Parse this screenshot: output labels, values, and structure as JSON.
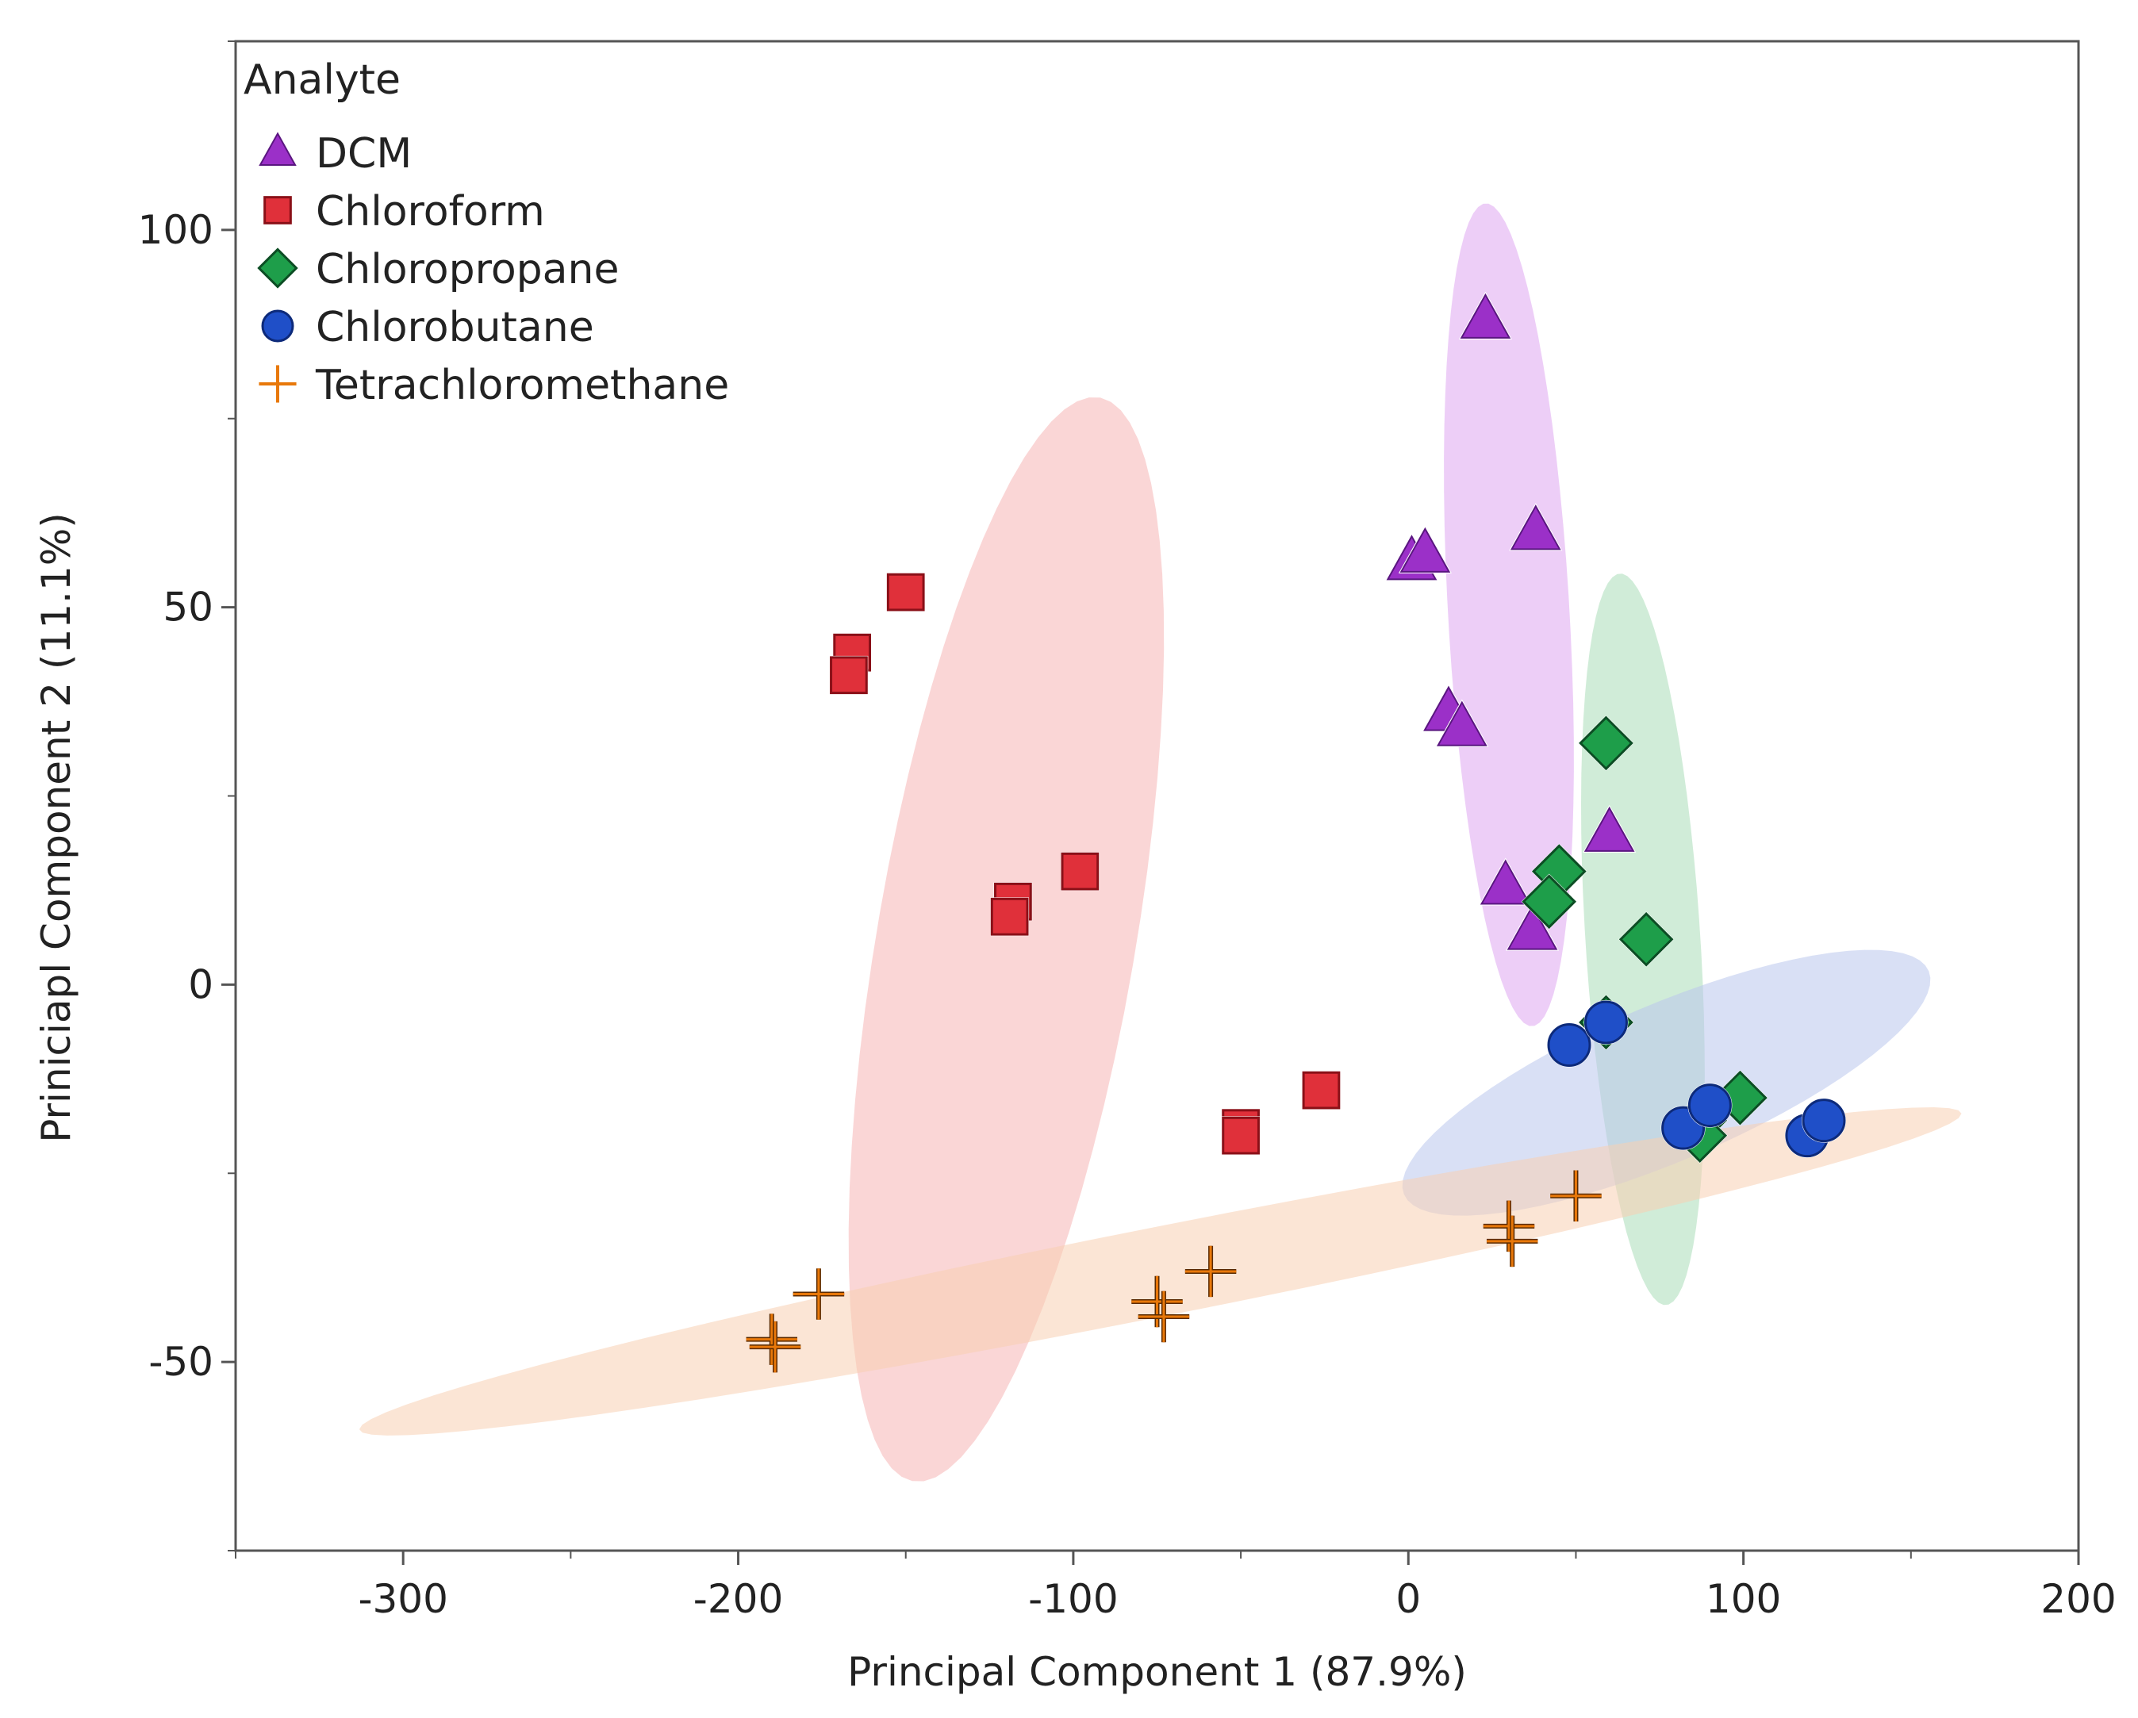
{
  "chart_data": {
    "type": "scatter",
    "title": "",
    "xlabel": "Principal Component 1 (87.9%)",
    "ylabel": "Priniciapl Component 2 (11.1%)",
    "xlim": [
      -350,
      200
    ],
    "ylim": [
      -75,
      125
    ],
    "xticks": [
      -300,
      -200,
      -100,
      0,
      100,
      200
    ],
    "yticks": [
      100,
      50,
      0,
      -50
    ],
    "grid": false,
    "legend": {
      "title": "Analyte",
      "placement": "top-left"
    },
    "series": [
      {
        "name": "DCM",
        "marker": "triangle",
        "color": "#9B30C8",
        "ellipse_color": "#DFA5F0",
        "ellipse": {
          "cx": 30,
          "cy": 49,
          "sx": 18,
          "sy": 55,
          "angle_deg": 8
        },
        "points": [
          {
            "x": 23,
            "y": 88
          },
          {
            "x": 38,
            "y": 60
          },
          {
            "x": 1,
            "y": 56
          },
          {
            "x": 5,
            "y": 57
          },
          {
            "x": 12,
            "y": 36
          },
          {
            "x": 16,
            "y": 34
          },
          {
            "x": 60,
            "y": 20
          },
          {
            "x": 29,
            "y": 13
          },
          {
            "x": 37,
            "y": 7
          }
        ]
      },
      {
        "name": "Chloroform",
        "marker": "square",
        "color": "#E0303A",
        "ellipse_color": "#F6B5B5",
        "ellipse": {
          "cx": -120,
          "cy": 6,
          "sx": 36,
          "sy": 78,
          "angle_deg": -26
        },
        "points": [
          {
            "x": -150,
            "y": 52
          },
          {
            "x": -166,
            "y": 44
          },
          {
            "x": -167,
            "y": 41
          },
          {
            "x": -118,
            "y": 11
          },
          {
            "x": -119,
            "y": 9
          },
          {
            "x": -98,
            "y": 15
          },
          {
            "x": -50,
            "y": -19
          },
          {
            "x": -50,
            "y": -20
          },
          {
            "x": -26,
            "y": -14
          }
        ]
      },
      {
        "name": "Chloropropane",
        "marker": "diamond",
        "color": "#1E9E4A",
        "ellipse_color": "#A9DDB8",
        "ellipse": {
          "cx": 70,
          "cy": 6,
          "sx": 17,
          "sy": 49,
          "angle_deg": 9
        },
        "points": [
          {
            "x": 59,
            "y": 32
          },
          {
            "x": 45,
            "y": 15
          },
          {
            "x": 42,
            "y": 11
          },
          {
            "x": 71,
            "y": 6
          },
          {
            "x": 59,
            "y": -5
          },
          {
            "x": 99,
            "y": -15
          },
          {
            "x": 87,
            "y": -18
          },
          {
            "x": 87,
            "y": -20
          }
        ]
      },
      {
        "name": "Chlorobutane",
        "marker": "circle",
        "color": "#1F4FC8",
        "ellipse_color": "#B9C6EC",
        "ellipse": {
          "cx": 77,
          "cy": -13,
          "sx": 11,
          "sy": 80,
          "angle_deg": 100
        },
        "points": [
          {
            "x": 48,
            "y": -8
          },
          {
            "x": 59,
            "y": -5
          },
          {
            "x": 82,
            "y": -19
          },
          {
            "x": 90,
            "y": -16
          },
          {
            "x": 119,
            "y": -20
          },
          {
            "x": 124,
            "y": -18
          }
        ]
      },
      {
        "name": "Tetrachloromethane",
        "marker": "plus",
        "color": "#E8780A",
        "ellipse_color": "#F8D0B2",
        "ellipse": {
          "cx": -74,
          "cy": -38,
          "sx": 6,
          "sy": 240,
          "angle_deg": 95
        },
        "points": [
          {
            "x": -190,
            "y": -47
          },
          {
            "x": -189,
            "y": -48
          },
          {
            "x": -176,
            "y": -41
          },
          {
            "x": -75,
            "y": -42
          },
          {
            "x": -73,
            "y": -44
          },
          {
            "x": -59,
            "y": -38
          },
          {
            "x": 30,
            "y": -32
          },
          {
            "x": 31,
            "y": -34
          },
          {
            "x": 50,
            "y": -28
          }
        ]
      }
    ]
  }
}
